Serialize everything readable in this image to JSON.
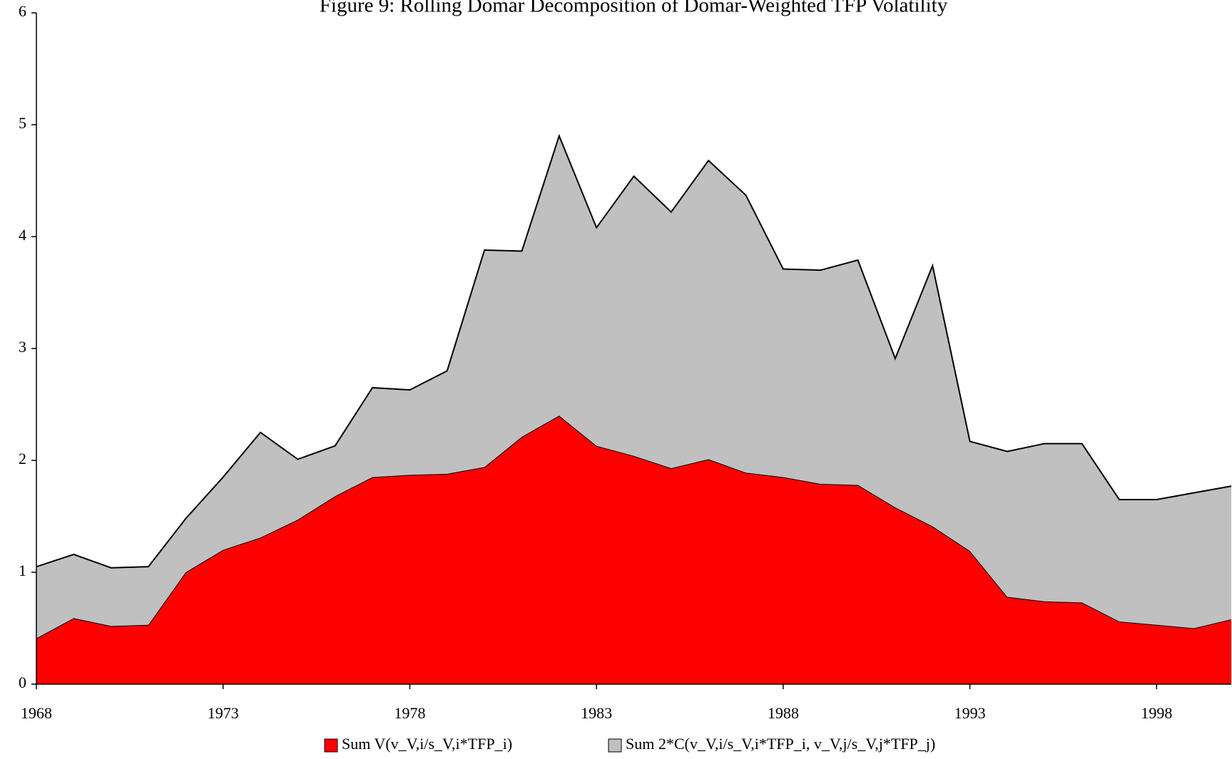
{
  "chart_data": {
    "type": "area",
    "stacked": true,
    "title": "Figure 9: Rolling Domar Decomposition of Domar-Weighted TFP Volatility",
    "x": [
      1968,
      1969,
      1970,
      1971,
      1972,
      1973,
      1974,
      1975,
      1976,
      1977,
      1978,
      1979,
      1980,
      1981,
      1982,
      1983,
      1984,
      1985,
      1986,
      1987,
      1988,
      1989,
      1990,
      1991,
      1992,
      1993,
      1994,
      1995,
      1996,
      1997,
      1998,
      1999,
      2000
    ],
    "series": [
      {
        "name": "Sum V(v_V,i/s_V,i*TFP_i)",
        "color": "#ff0000",
        "values": [
          0.41,
          0.59,
          0.52,
          0.53,
          1.0,
          1.2,
          1.31,
          1.47,
          1.68,
          1.85,
          1.87,
          1.88,
          1.94,
          2.21,
          2.4,
          2.13,
          2.04,
          1.93,
          2.01,
          1.89,
          1.85,
          1.79,
          1.78,
          1.58,
          1.41,
          1.19,
          0.78,
          0.74,
          0.73,
          0.56,
          0.53,
          0.5,
          0.58
        ]
      },
      {
        "name": "Sum 2*C(v_V,i/s_V,i*TFP_i, v_V,j/s_V,j*TFP_j)",
        "color": "#c0c0c0",
        "values": [
          0.64,
          0.57,
          0.52,
          0.52,
          0.48,
          0.65,
          0.94,
          0.54,
          0.45,
          0.8,
          0.76,
          0.92,
          1.94,
          1.66,
          2.5,
          1.95,
          2.5,
          2.29,
          2.67,
          2.48,
          1.86,
          1.91,
          2.01,
          1.33,
          2.33,
          0.98,
          1.3,
          1.41,
          1.42,
          1.09,
          1.12,
          1.21,
          1.19
        ]
      }
    ],
    "xlim": [
      1968,
      2000
    ],
    "xticks": [
      1968,
      1973,
      1978,
      1983,
      1988,
      1993,
      1998
    ],
    "ylim": [
      0,
      6
    ],
    "yticks": [
      0,
      1,
      2,
      3,
      4,
      5,
      6
    ],
    "legend": "bottom"
  }
}
